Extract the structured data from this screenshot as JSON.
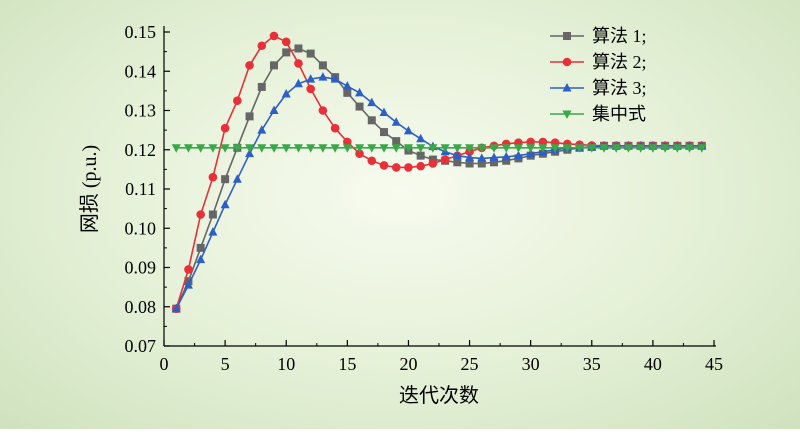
{
  "chart_data": {
    "type": "line",
    "xlabel": "迭代次数",
    "ylabel": "网损 (p.u.)",
    "xlim": [
      0,
      45
    ],
    "ylim": [
      0.07,
      0.15
    ],
    "xticks": [
      "0",
      "5",
      "10",
      "15",
      "20",
      "25",
      "30",
      "35",
      "40",
      "45"
    ],
    "yticks": [
      "0.07",
      "0.08",
      "0.09",
      "0.10",
      "0.11",
      "0.12",
      "0.13",
      "0.14",
      "0.15"
    ],
    "legend_position": "top-right",
    "x": [
      1,
      2,
      3,
      4,
      5,
      6,
      7,
      8,
      9,
      10,
      11,
      12,
      13,
      14,
      15,
      16,
      17,
      18,
      19,
      20,
      21,
      22,
      23,
      24,
      25,
      26,
      27,
      28,
      29,
      30,
      31,
      32,
      33,
      34,
      35,
      36,
      37,
      38,
      39,
      40,
      41,
      42,
      43,
      44
    ],
    "series": [
      {
        "name": "算法 1;",
        "color": "#666666",
        "marker": "square",
        "values": [
          0.0795,
          0.0865,
          0.095,
          0.1035,
          0.1125,
          0.1205,
          0.1285,
          0.136,
          0.1415,
          0.1448,
          0.1458,
          0.1445,
          0.1415,
          0.1385,
          0.1345,
          0.131,
          0.1275,
          0.1245,
          0.1222,
          0.1198,
          0.1185,
          0.1175,
          0.1172,
          0.1168,
          0.1165,
          0.1165,
          0.1168,
          0.1172,
          0.1178,
          0.1185,
          0.119,
          0.1195,
          0.12,
          0.1205,
          0.1207,
          0.121,
          0.121,
          0.121,
          0.121,
          0.121,
          0.121,
          0.121,
          0.121,
          0.121
        ]
      },
      {
        "name": "算法 2;",
        "color": "#e8303a",
        "marker": "circle",
        "values": [
          0.0795,
          0.0895,
          0.1035,
          0.113,
          0.1255,
          0.1325,
          0.1415,
          0.1465,
          0.149,
          0.1475,
          0.142,
          0.1355,
          0.13,
          0.1255,
          0.122,
          0.119,
          0.1172,
          0.116,
          0.1155,
          0.1155,
          0.1158,
          0.1165,
          0.1175,
          0.1185,
          0.1195,
          0.1205,
          0.121,
          0.1215,
          0.1218,
          0.122,
          0.122,
          0.1218,
          0.1215,
          0.1213,
          0.1211,
          0.121,
          0.121,
          0.121,
          0.121,
          0.121,
          0.121,
          0.121,
          0.121,
          0.121
        ]
      },
      {
        "name": "算法 3;",
        "color": "#2e5fc4",
        "marker": "triangle",
        "values": [
          0.0795,
          0.0855,
          0.092,
          0.099,
          0.106,
          0.1125,
          0.119,
          0.125,
          0.13,
          0.1342,
          0.1368,
          0.138,
          0.1385,
          0.138,
          0.1362,
          0.1345,
          0.132,
          0.1295,
          0.127,
          0.1248,
          0.1228,
          0.1208,
          0.1195,
          0.1185,
          0.118,
          0.1178,
          0.118,
          0.1182,
          0.1185,
          0.119,
          0.1195,
          0.12,
          0.1205,
          0.1205,
          0.1207,
          0.121,
          0.121,
          0.121,
          0.121,
          0.121,
          0.121,
          0.121,
          0.121,
          0.121
        ]
      },
      {
        "name": "集中式",
        "color": "#3aa84a",
        "marker": "triangle-down",
        "values": [
          0.1205,
          0.1205,
          0.1205,
          0.1205,
          0.1205,
          0.1205,
          0.1205,
          0.1205,
          0.1205,
          0.1205,
          0.1205,
          0.1205,
          0.1205,
          0.1205,
          0.1205,
          0.1205,
          0.1205,
          0.1205,
          0.1205,
          0.1205,
          0.1205,
          0.1205,
          0.1205,
          0.1205,
          0.1205,
          0.1205,
          0.1205,
          0.1205,
          0.1205,
          0.1205,
          0.1205,
          0.1205,
          0.1205,
          0.1205,
          0.1205,
          0.1205,
          0.1205,
          0.1205,
          0.1205,
          0.1205,
          0.1205,
          0.1205,
          0.1205,
          0.1205
        ]
      }
    ]
  }
}
